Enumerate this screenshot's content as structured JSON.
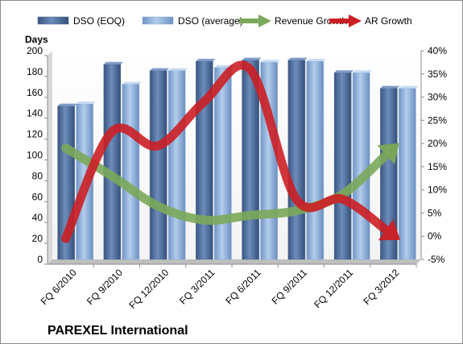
{
  "chart_data": {
    "type": "bar",
    "categories": [
      "FQ 6/2010",
      "FQ 9/2010",
      "FQ 12/2010",
      "FQ 3/2011",
      "FQ 6/2011",
      "FQ 9/2011",
      "FQ 12/2011",
      "FQ 3/2012"
    ],
    "series": [
      {
        "name": "DSO (EOQ)",
        "axis": "left",
        "type": "bar",
        "color": "#4f6d98",
        "values": [
          147,
          187,
          181,
          190,
          191,
          191,
          179,
          164
        ]
      },
      {
        "name": "DSO (average)",
        "axis": "left",
        "type": "bar",
        "color": "#86a9d4",
        "values": [
          149,
          168,
          181,
          184,
          189,
          190,
          179,
          164
        ]
      },
      {
        "name": "Revenue Growth",
        "axis": "right",
        "type": "line",
        "color": "#7ba85a",
        "values": [
          19,
          13,
          6.5,
          3.5,
          4.5,
          5.5,
          9,
          18
        ]
      },
      {
        "name": "AR Growth",
        "axis": "right",
        "type": "line",
        "color": "#cc1f25",
        "values": [
          -0.5,
          22.5,
          19.5,
          29,
          36,
          8,
          8,
          1
        ]
      }
    ],
    "ylabel": "Days",
    "ylim": [
      0,
      200
    ],
    "yticks": [
      0,
      20,
      40,
      60,
      80,
      100,
      120,
      140,
      160,
      180,
      200
    ],
    "y2lim": [
      -5,
      40
    ],
    "y2ticks": [
      -5,
      0,
      5,
      10,
      15,
      20,
      25,
      30,
      35,
      40
    ],
    "y2_unit": "%",
    "grid": false,
    "legend": "top"
  },
  "company_name": "PAREXEL International"
}
